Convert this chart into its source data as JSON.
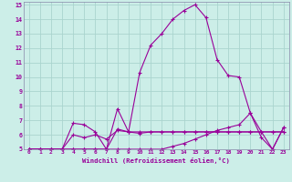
{
  "xlabel": "Windchill (Refroidissement éolien,°C)",
  "background_color": "#cceee8",
  "grid_color": "#aad4ce",
  "line_color": "#990099",
  "spine_color": "#8888aa",
  "xlim": [
    -0.5,
    23.5
  ],
  "ylim": [
    5,
    15.2
  ],
  "xticks": [
    0,
    1,
    2,
    3,
    4,
    5,
    6,
    7,
    8,
    9,
    10,
    11,
    12,
    13,
    14,
    15,
    16,
    17,
    18,
    19,
    20,
    21,
    22,
    23
  ],
  "yticks": [
    5,
    6,
    7,
    8,
    9,
    10,
    11,
    12,
    13,
    14,
    15
  ],
  "series": [
    [
      5.0,
      5.0,
      5.0,
      5.0,
      5.0,
      5.0,
      5.0,
      5.0,
      5.0,
      5.0,
      5.0,
      5.0,
      5.0,
      5.2,
      5.4,
      5.7,
      6.0,
      6.3,
      6.5,
      6.7,
      7.5,
      6.2,
      5.0,
      6.5
    ],
    [
      5.0,
      5.0,
      5.0,
      5.0,
      6.0,
      5.8,
      6.0,
      5.7,
      6.3,
      6.2,
      6.1,
      6.2,
      6.2,
      6.2,
      6.2,
      6.2,
      6.2,
      6.2,
      6.2,
      6.2,
      6.2,
      6.2,
      6.2,
      6.2
    ],
    [
      5.0,
      5.0,
      5.0,
      5.0,
      6.8,
      6.7,
      6.2,
      5.0,
      6.4,
      6.2,
      6.2,
      6.2,
      6.2,
      6.2,
      6.2,
      6.2,
      6.2,
      6.2,
      6.2,
      6.2,
      6.2,
      6.2,
      6.2,
      6.2
    ],
    [
      5.0,
      5.0,
      5.0,
      5.0,
      5.0,
      5.0,
      5.0,
      5.0,
      7.8,
      6.2,
      10.3,
      12.2,
      13.0,
      14.0,
      14.6,
      15.0,
      14.1,
      11.2,
      10.1,
      10.0,
      7.5,
      5.8,
      5.0,
      6.5
    ]
  ]
}
